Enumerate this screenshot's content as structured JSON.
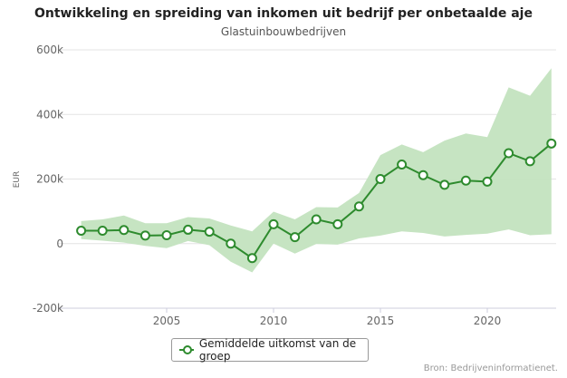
{
  "chart_data": {
    "type": "line",
    "title": "Ontwikkeling en spreiding van inkomen uit bedrijf per onbetaalde aje",
    "subtitle": "Glastuinbouwbedrijven",
    "ylabel": "EUR",
    "xlabel": "",
    "ylim": [
      -200000,
      600000
    ],
    "xlim": [
      2001,
      2023
    ],
    "yticks": [
      {
        "v": 600000,
        "label": "600k"
      },
      {
        "v": 400000,
        "label": "400k"
      },
      {
        "v": 200000,
        "label": "200k"
      },
      {
        "v": 0,
        "label": "0"
      },
      {
        "v": -200000,
        "label": "-200k"
      }
    ],
    "xticks": [
      {
        "v": 2005,
        "label": "2005"
      },
      {
        "v": 2010,
        "label": "2010"
      },
      {
        "v": 2015,
        "label": "2015"
      },
      {
        "v": 2020,
        "label": "2020"
      }
    ],
    "grid": true,
    "x": [
      2001,
      2002,
      2003,
      2004,
      2005,
      2006,
      2007,
      2008,
      2009,
      2010,
      2011,
      2012,
      2013,
      2014,
      2015,
      2016,
      2017,
      2018,
      2019,
      2020,
      2021,
      2022,
      2023
    ],
    "series": [
      {
        "name": "Gemiddelde uitkomst van de groep",
        "color": "#2e8b2e",
        "values": [
          40000,
          40000,
          42000,
          25000,
          26000,
          43000,
          37000,
          0,
          -45000,
          60000,
          20000,
          75000,
          60000,
          115000,
          200000,
          245000,
          212000,
          182000,
          195000,
          192000,
          280000,
          255000,
          310000
        ]
      }
    ],
    "band": {
      "color": "#c3e3bf",
      "upper": [
        70000,
        75000,
        87000,
        63000,
        63000,
        82000,
        78000,
        56000,
        38000,
        99000,
        75000,
        113000,
        112000,
        157000,
        274000,
        307000,
        283000,
        319000,
        341000,
        330000,
        484000,
        458000,
        543000
      ],
      "lower": [
        14000,
        9000,
        3000,
        -7000,
        -14000,
        8000,
        -5000,
        -56000,
        -89000,
        0,
        -31000,
        -1000,
        -3000,
        16000,
        25000,
        38000,
        33000,
        22000,
        27000,
        31000,
        44000,
        26000,
        29000
      ]
    },
    "legend": "bottom-center"
  },
  "source": "Bron: Bedrijveninformatienet."
}
